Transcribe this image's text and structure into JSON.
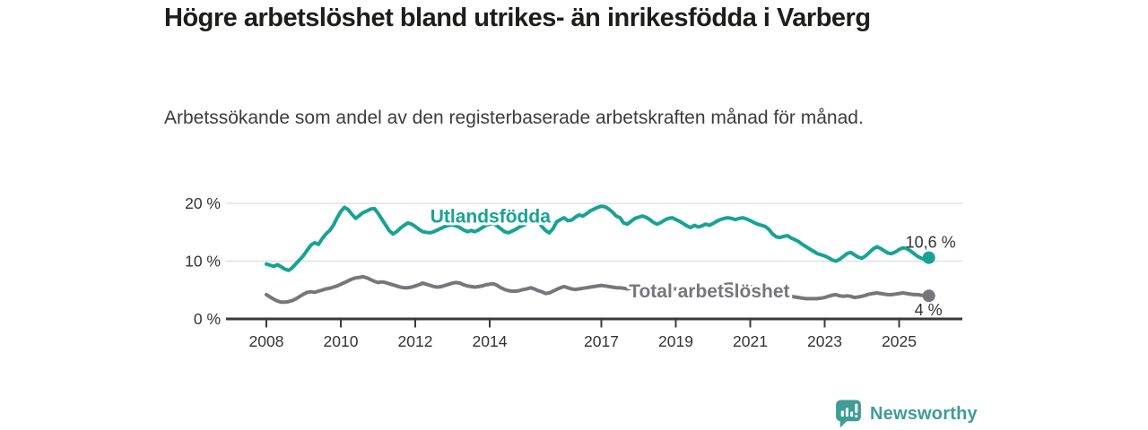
{
  "page": {
    "title": "Högre arbetslöshet bland utrikes- än inrikesfödda i Varberg",
    "subtitle": "Arbetssökande som andel av den registerbaserade arbetskraften månad för månad."
  },
  "footer": {
    "brand": "Newsworthy",
    "logo_icon": "bar-chart-speech-bubble-icon"
  },
  "colors": {
    "accent_teal": "#17A394",
    "series_gray": "#76777A",
    "grid_line": "#DCDCDC",
    "axis_line": "#3A3A3A",
    "tick_text": "#333333",
    "title_text": "#1D1D1B",
    "body_text": "#3C3C3C",
    "brand_teal": "#3F9D96",
    "background": "#FFFFFF"
  },
  "chart_data": {
    "type": "line",
    "title": "Högre arbetslöshet bland utrikes- än inrikesfödda i Varberg",
    "subtitle": "Arbetssökande som andel av den registerbaserade arbetskraften månad för månad.",
    "x_unit": "year (monthly observations)",
    "xlim": [
      2008.0,
      2025.8
    ],
    "ylim": [
      0,
      20
    ],
    "grid": "horizontal-only",
    "legend_position": "inline-on-line",
    "y_ticks": [
      {
        "value": 0,
        "label": "0 %"
      },
      {
        "value": 10,
        "label": "10 %"
      },
      {
        "value": 20,
        "label": "20 %"
      }
    ],
    "x_ticks": [
      {
        "value": 2008,
        "label": "2008"
      },
      {
        "value": 2010,
        "label": "2010"
      },
      {
        "value": 2012,
        "label": "2012"
      },
      {
        "value": 2014,
        "label": "2014"
      },
      {
        "value": 2017,
        "label": "2017"
      },
      {
        "value": 2019,
        "label": "2019"
      },
      {
        "value": 2021,
        "label": "2021"
      },
      {
        "value": 2023,
        "label": "2023"
      },
      {
        "value": 2025,
        "label": "2025"
      }
    ],
    "series": [
      {
        "name": "Utlandsfödda",
        "color": "#17A394",
        "x_start": 2008.0,
        "x_step": 0.1,
        "end_value": 10.6,
        "end_label": "10,6 %",
        "label_pos": {
          "year": 2014.02,
          "pct": 16.7
        },
        "end_label_offset": {
          "dx": 30,
          "dy": -11
        },
        "values": [
          9.5,
          9.3,
          9.1,
          9.4,
          9.0,
          8.6,
          8.4,
          8.9,
          9.6,
          10.3,
          11.0,
          11.9,
          12.8,
          13.2,
          12.9,
          13.9,
          14.7,
          15.3,
          16.2,
          17.5,
          18.6,
          19.3,
          18.9,
          18.1,
          17.4,
          17.9,
          18.4,
          18.7,
          19.0,
          19.1,
          18.3,
          17.3,
          16.3,
          15.3,
          14.7,
          15.1,
          15.7,
          16.2,
          16.6,
          16.4,
          16.0,
          15.5,
          15.1,
          15.0,
          14.9,
          15.1,
          15.4,
          15.7,
          16.0,
          16.2,
          16.3,
          16.1,
          15.8,
          15.4,
          15.1,
          15.3,
          15.1,
          15.4,
          15.8,
          16.2,
          16.4,
          16.5,
          16.1,
          15.6,
          15.1,
          14.9,
          15.2,
          15.5,
          15.9,
          16.2,
          16.5,
          17.0,
          17.3,
          16.8,
          16.0,
          15.3,
          14.9,
          15.6,
          16.8,
          17.2,
          17.5,
          17.0,
          17.1,
          17.6,
          18.0,
          17.8,
          18.2,
          18.7,
          19.0,
          19.3,
          19.5,
          19.4,
          19.0,
          18.5,
          17.8,
          17.5,
          16.6,
          16.4,
          16.9,
          17.4,
          17.6,
          17.8,
          17.6,
          17.2,
          16.7,
          16.4,
          16.7,
          17.1,
          17.4,
          17.5,
          17.2,
          16.9,
          16.5,
          16.1,
          15.8,
          16.2,
          15.9,
          16.1,
          16.4,
          16.2,
          16.5,
          16.9,
          17.2,
          17.4,
          17.5,
          17.4,
          17.2,
          17.4,
          17.5,
          17.3,
          17.0,
          16.7,
          16.4,
          16.2,
          16.0,
          15.5,
          14.7,
          14.2,
          14.1,
          14.3,
          14.4,
          14.0,
          13.7,
          13.4,
          12.9,
          12.5,
          12.1,
          11.7,
          11.3,
          11.1,
          10.9,
          10.6,
          10.2,
          10.0,
          10.3,
          10.8,
          11.3,
          11.5,
          11.1,
          10.7,
          10.5,
          10.9,
          11.5,
          12.1,
          12.5,
          12.2,
          11.8,
          11.4,
          11.3,
          11.6,
          12.0,
          12.3,
          12.2,
          11.8,
          11.3,
          10.8,
          10.5,
          10.3,
          10.6
        ]
      },
      {
        "name": "Total arbetslöshet",
        "color": "#76777A",
        "x_start": 2008.0,
        "x_step": 0.1,
        "end_value": 4.0,
        "end_label": "4 %",
        "label_pos": {
          "year": 2019.9,
          "pct": 3.7
        },
        "end_label_offset": {
          "dx": 15,
          "dy": 22
        },
        "values": [
          4.2,
          3.8,
          3.4,
          3.1,
          2.9,
          2.9,
          3.0,
          3.2,
          3.5,
          3.9,
          4.3,
          4.6,
          4.7,
          4.6,
          4.8,
          5.0,
          5.2,
          5.3,
          5.5,
          5.7,
          6.0,
          6.3,
          6.6,
          6.9,
          7.1,
          7.2,
          7.3,
          7.1,
          6.8,
          6.5,
          6.3,
          6.4,
          6.3,
          6.1,
          5.9,
          5.7,
          5.5,
          5.4,
          5.4,
          5.5,
          5.7,
          5.9,
          6.2,
          6.0,
          5.8,
          5.6,
          5.5,
          5.6,
          5.8,
          6.0,
          6.2,
          6.3,
          6.2,
          5.9,
          5.7,
          5.6,
          5.5,
          5.6,
          5.7,
          5.9,
          6.0,
          6.1,
          5.8,
          5.4,
          5.1,
          4.9,
          4.8,
          4.8,
          4.9,
          5.1,
          5.2,
          5.4,
          5.2,
          4.9,
          4.7,
          4.4,
          4.5,
          4.8,
          5.1,
          5.4,
          5.6,
          5.4,
          5.2,
          5.1,
          5.2,
          5.3,
          5.4,
          5.5,
          5.6,
          5.7,
          5.8,
          5.7,
          5.6,
          5.5,
          5.4,
          5.4,
          5.3,
          5.2,
          5.3,
          5.4,
          5.5,
          5.4,
          5.3,
          5.2,
          5.1,
          5.0,
          4.9,
          5.0,
          5.1,
          5.2,
          5.2,
          5.1,
          5.0,
          4.9,
          4.8,
          4.7,
          4.7,
          4.8,
          4.9,
          5.0,
          5.2,
          5.4,
          5.7,
          5.9,
          6.0,
          6.0,
          5.9,
          5.8,
          5.7,
          5.6,
          5.6,
          5.5,
          5.4,
          5.2,
          5.0,
          4.8,
          4.6,
          4.5,
          4.3,
          4.2,
          4.1,
          3.9,
          3.8,
          3.7,
          3.6,
          3.5,
          3.5,
          3.5,
          3.5,
          3.6,
          3.7,
          3.9,
          4.1,
          4.2,
          4.0,
          3.9,
          4.0,
          3.9,
          3.7,
          3.8,
          3.9,
          4.1,
          4.3,
          4.4,
          4.5,
          4.4,
          4.3,
          4.2,
          4.2,
          4.3,
          4.4,
          4.5,
          4.4,
          4.3,
          4.2,
          4.2,
          4.1,
          4.1,
          4.0
        ]
      }
    ]
  }
}
